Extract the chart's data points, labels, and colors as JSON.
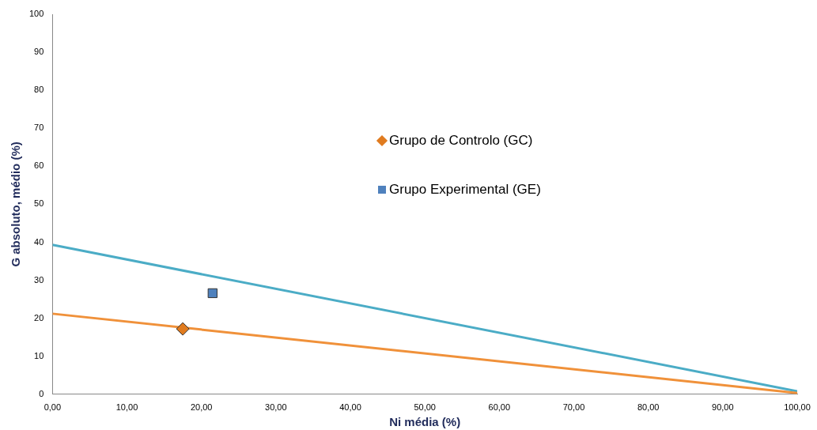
{
  "chart_data": {
    "type": "scatter",
    "xlabel": "Ni média (%)",
    "ylabel": "G absoluto, médio (%)",
    "xlim": [
      0,
      100
    ],
    "ylim": [
      0,
      100
    ],
    "xticks": [
      {
        "value": 0,
        "label": "0,00"
      },
      {
        "value": 10,
        "label": "10,00"
      },
      {
        "value": 20,
        "label": "20,00"
      },
      {
        "value": 30,
        "label": "30,00"
      },
      {
        "value": 40,
        "label": "40,00"
      },
      {
        "value": 50,
        "label": "50,00"
      },
      {
        "value": 60,
        "label": "60,00"
      },
      {
        "value": 70,
        "label": "70,00"
      },
      {
        "value": 80,
        "label": "80,00"
      },
      {
        "value": 90,
        "label": "90,00"
      },
      {
        "value": 100,
        "label": "100,00"
      }
    ],
    "yticks": [
      0,
      10,
      20,
      30,
      40,
      50,
      60,
      70,
      80,
      90,
      100
    ],
    "legend": "top",
    "grid": false,
    "series": [
      {
        "name": "Grupo de Controlo (GC)",
        "marker": "diamond",
        "color": "#e07b1f",
        "x": [
          17.5
        ],
        "values": [
          17.2
        ]
      },
      {
        "name": "Grupo Experimental (GE)",
        "marker": "square",
        "color": "#4f81bd",
        "x": [
          21.5
        ],
        "values": [
          26.6
        ]
      },
      {
        "type": "line",
        "marker": "none",
        "color": "#f0913a",
        "x": [
          0,
          100
        ],
        "values": [
          21.2,
          0.3
        ]
      },
      {
        "type": "line",
        "marker": "none",
        "color": "#4bacc6",
        "x": [
          0,
          100
        ],
        "values": [
          39.3,
          0.8
        ]
      }
    ]
  }
}
